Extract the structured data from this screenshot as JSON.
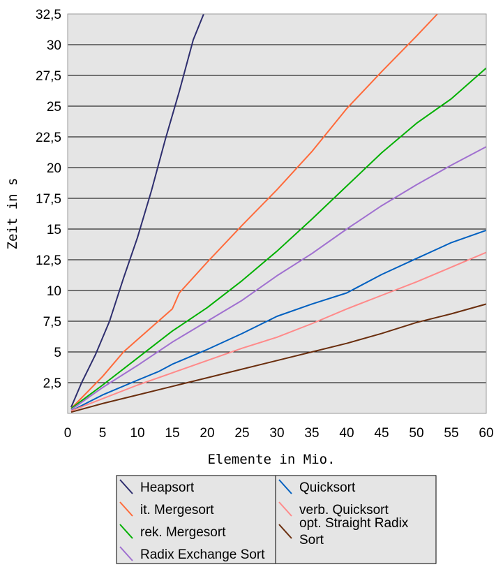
{
  "chart_data": {
    "type": "line",
    "title": "",
    "xlabel": "Elemente in Mio.",
    "ylabel": "Zeit in s",
    "xlim": [
      0,
      60
    ],
    "ylim": [
      0,
      32.5
    ],
    "x_ticks": [
      "0",
      "5",
      "10",
      "15",
      "20",
      "25",
      "30",
      "35",
      "40",
      "45",
      "50",
      "55",
      "60"
    ],
    "y_ticks": [
      "2,5",
      "5",
      "7,5",
      "10",
      "12,5",
      "15",
      "17,5",
      "20",
      "22,5",
      "25",
      "27,5",
      "30",
      "32,5"
    ],
    "grid": "horizontal",
    "legend_position": "bottom",
    "series": [
      {
        "name": "Heapsort",
        "color": "#2e2e6e",
        "x": [
          0.5,
          2,
          4,
          6,
          8,
          10,
          12,
          14,
          16,
          18,
          19.5
        ],
        "y": [
          0.5,
          2.5,
          4.8,
          7.5,
          11,
          14.3,
          18.1,
          22.3,
          26.2,
          30.4,
          32.5
        ]
      },
      {
        "name": "it. Mergesort",
        "color": "#ff6a3a",
        "x": [
          0.5,
          5,
          8,
          10,
          15,
          16,
          20,
          25,
          30,
          35,
          40,
          45,
          50,
          53
        ],
        "y": [
          0.4,
          3,
          5,
          6,
          8.5,
          9.8,
          12.3,
          15.3,
          18.2,
          21.3,
          24.8,
          27.8,
          30.7,
          32.5
        ]
      },
      {
        "name": "rek. Mergesort",
        "color": "#00b000",
        "x": [
          0.5,
          5,
          10,
          15,
          20,
          25,
          30,
          35,
          40,
          45,
          50,
          55,
          60
        ],
        "y": [
          0.4,
          2.3,
          4.5,
          6.7,
          8.6,
          10.8,
          13.2,
          15.8,
          18.5,
          21.2,
          23.6,
          25.6,
          28.1
        ]
      },
      {
        "name": "Radix Exchange Sort",
        "color": "#a070d0",
        "x": [
          0.5,
          5,
          10,
          15,
          20,
          25,
          30,
          35,
          40,
          45,
          50,
          55,
          60
        ],
        "y": [
          0.3,
          2.1,
          3.9,
          5.8,
          7.5,
          9.2,
          11.2,
          13.0,
          15.0,
          16.9,
          18.6,
          20.2,
          21.7
        ]
      },
      {
        "name": "Quicksort",
        "color": "#0060c0",
        "x": [
          0.5,
          5,
          10,
          13,
          15,
          20,
          25,
          30,
          35,
          40,
          45,
          50,
          55,
          60
        ],
        "y": [
          0.2,
          1.5,
          2.7,
          3.4,
          4.0,
          5.2,
          6.5,
          7.9,
          8.9,
          9.8,
          11.3,
          12.6,
          13.9,
          14.9
        ]
      },
      {
        "name": "verb. Quicksort",
        "color": "#ff8a8a",
        "x": [
          0.5,
          5,
          10,
          15,
          20,
          25,
          30,
          35,
          40,
          45,
          50,
          55,
          60
        ],
        "y": [
          0.2,
          1.2,
          2.3,
          3.3,
          4.3,
          5.3,
          6.2,
          7.3,
          8.5,
          9.6,
          10.7,
          11.9,
          13.1
        ]
      },
      {
        "name": "opt. Straight Radix Sort",
        "color": "#6a2e0e",
        "x": [
          0.5,
          5,
          10,
          15,
          20,
          25,
          30,
          35,
          40,
          45,
          50,
          55,
          60
        ],
        "y": [
          0.1,
          0.8,
          1.5,
          2.2,
          2.9,
          3.6,
          4.3,
          5.0,
          5.7,
          6.5,
          7.4,
          8.1,
          8.9
        ]
      }
    ]
  }
}
